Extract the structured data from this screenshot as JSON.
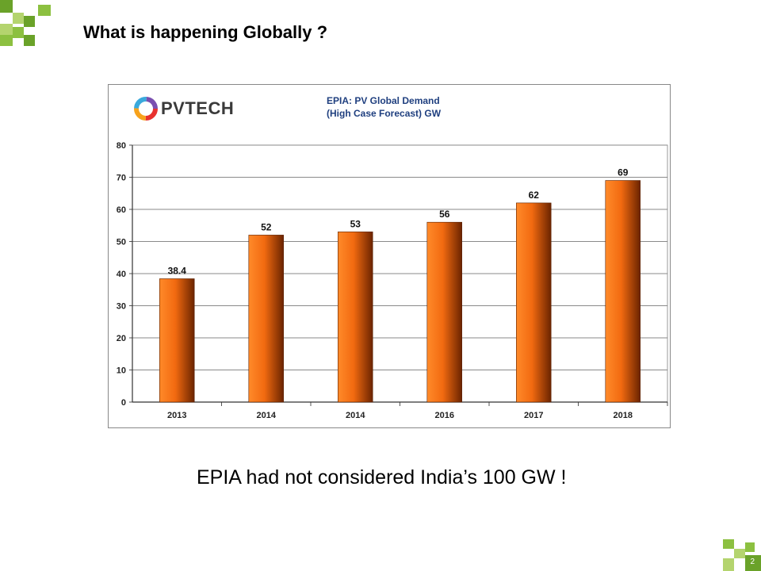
{
  "slide": {
    "title": "What is happening Globally ?",
    "note": "EPIA had not considered India’s 100 GW !",
    "page_number": "2"
  },
  "logo": {
    "text": "PVTECH",
    "icon": "pvtech-ring-logo-icon"
  },
  "colors": {
    "accent_green_dark": "#6aa229",
    "accent_green_light": "#b4d46e",
    "bar_light": "#ff7a1c",
    "bar_dark": "#6b2400",
    "chart_title": "#1f3f7f"
  },
  "chart_data": {
    "type": "bar",
    "title": "EPIA: PV Global Demand",
    "subtitle": "(High Case Forecast) GW",
    "categories": [
      "2013",
      "2014",
      "2014",
      "2016",
      "2017",
      "2018"
    ],
    "values": [
      38.4,
      52,
      53,
      56,
      62,
      69
    ],
    "value_labels": [
      "38.4",
      "52",
      "53",
      "56",
      "62",
      "69"
    ],
    "ylim": [
      0,
      80
    ],
    "yticks": [
      0,
      10,
      20,
      30,
      40,
      50,
      60,
      70,
      80
    ],
    "grid": true,
    "legend": false
  }
}
